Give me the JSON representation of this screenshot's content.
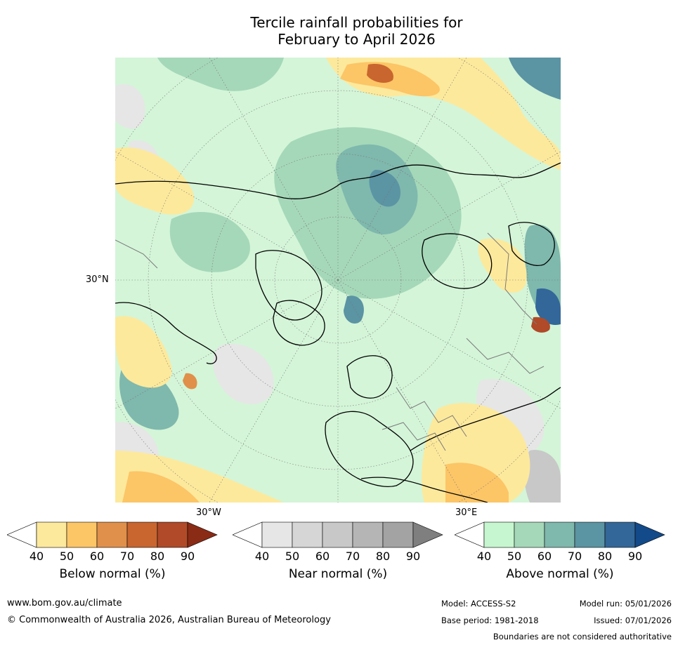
{
  "title": {
    "line1": "Tercile rainfall probabilities for",
    "line2": "February to April 2026"
  },
  "map": {
    "lat_label": "30°N",
    "lon_labels": [
      "30°W",
      "30°E"
    ]
  },
  "colorbars": [
    {
      "label": "Below normal (%)",
      "ticks": [
        "40",
        "50",
        "60",
        "70",
        "80",
        "90"
      ],
      "colors": [
        "#ffffff",
        "#fde99c",
        "#fcc566",
        "#e0904a",
        "#c9652f",
        "#b04a28",
        "#8a2b16"
      ]
    },
    {
      "label": "Near normal (%)",
      "ticks": [
        "40",
        "50",
        "60",
        "70",
        "80",
        "90"
      ],
      "colors": [
        "#ffffff",
        "#e6e6e6",
        "#d6d6d6",
        "#c8c8c8",
        "#b5b5b5",
        "#a3a3a3",
        "#7f7f7f"
      ]
    },
    {
      "label": "Above normal (%)",
      "ticks": [
        "40",
        "50",
        "60",
        "70",
        "80",
        "90"
      ],
      "colors": [
        "#ffffff",
        "#c6f6cf",
        "#a5d8b9",
        "#7fb8ad",
        "#5b94a3",
        "#336799",
        "#134a89"
      ]
    }
  ],
  "footer": {
    "website": "www.bom.gov.au/climate",
    "copyright": "© Commonwealth of Australia 2026, Australian Bureau of Meteorology",
    "model": "Model: ACCESS-S2",
    "base_period": "Base period: 1981-2018",
    "model_run": "Model run: 05/01/2026",
    "issued": "Issued: 07/01/2026",
    "disclaimer": "Boundaries are not considered authoritative"
  }
}
